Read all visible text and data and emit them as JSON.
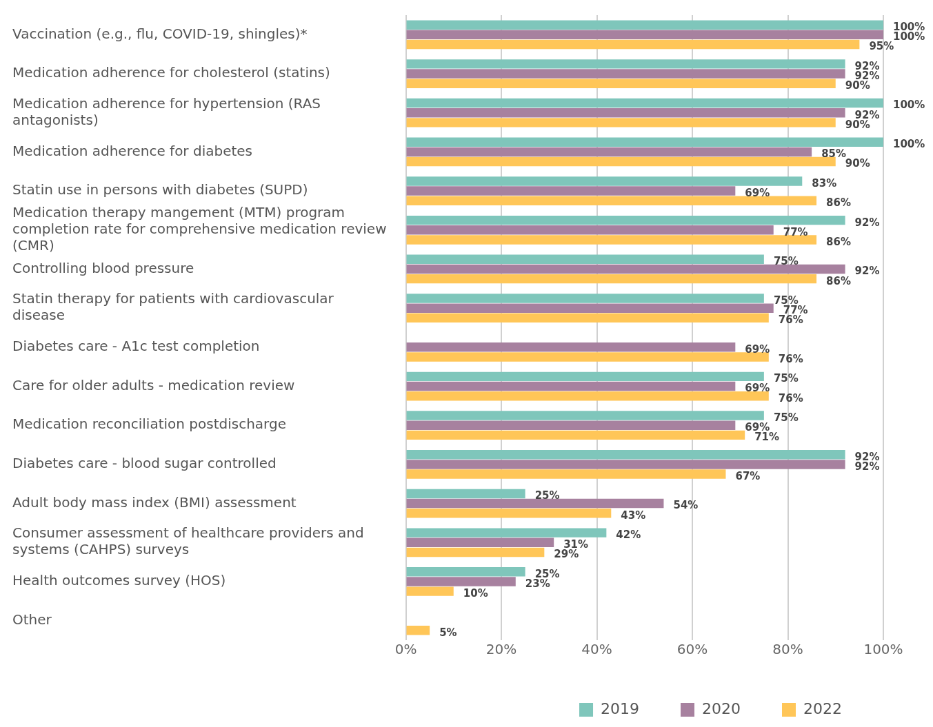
{
  "chart_data": {
    "type": "bar",
    "orientation": "horizontal",
    "categories": [
      "Vaccination (e.g., flu, COVID-19, shingles)*",
      "Medication adherence for cholesterol (statins)",
      "Medication adherence for hypertension (RAS antagonists)",
      "Medication adherence for diabetes",
      "Statin use in persons with diabetes (SUPD)",
      "Medication therapy mangement (MTM) program completion rate for comprehensive medication review (CMR)",
      "Controlling blood pressure",
      "Statin therapy for patients with cardiovascular disease",
      "Diabetes care - A1c test completion",
      "Care for older adults - medication review",
      "Medication reconciliation postdischarge",
      "Diabetes care - blood sugar controlled",
      "Adult body mass index (BMI) assessment",
      "Consumer assessment of healthcare providers and systems (CAHPS) surveys",
      "Health outcomes survey (HOS)",
      "Other"
    ],
    "series": [
      {
        "name": "2019",
        "color": "#7fc6bb",
        "values": [
          100,
          92,
          100,
          100,
          83,
          92,
          75,
          75,
          null,
          75,
          75,
          92,
          25,
          42,
          25,
          null
        ],
        "value_labels": [
          "100%",
          "92%",
          "100%",
          "100%",
          "83%",
          "92%",
          "75%",
          "75%",
          null,
          "75%",
          "75%",
          "92%",
          "25%",
          "42%",
          "25%",
          null
        ]
      },
      {
        "name": "2020",
        "color": "#a7819f",
        "values": [
          100,
          92,
          92,
          85,
          69,
          77,
          92,
          77,
          69,
          69,
          69,
          92,
          54,
          31,
          23,
          null
        ],
        "value_labels": [
          "100%",
          "92%",
          "92%",
          "85%",
          "69%",
          "77%",
          "92%",
          "77%",
          "69%",
          "69%",
          "69%",
          "92%",
          "54%",
          "31%",
          "23%",
          null
        ]
      },
      {
        "name": "2022",
        "color": "#ffc658",
        "values": [
          95,
          90,
          90,
          90,
          86,
          86,
          86,
          76,
          76,
          76,
          71,
          67,
          43,
          29,
          10,
          5
        ],
        "value_labels": [
          "95%",
          "90%",
          "90%",
          "90%",
          "86%",
          "86%",
          "86%",
          "76%",
          "76%",
          "76%",
          "71%",
          "67%",
          "43%",
          "29%",
          "10%",
          "5%"
        ]
      }
    ],
    "xlim": [
      0,
      100
    ],
    "xticks": [
      {
        "value": 0,
        "label": "0%"
      },
      {
        "value": 20,
        "label": "20%"
      },
      {
        "value": 40,
        "label": "40%"
      },
      {
        "value": 60,
        "label": "60%"
      },
      {
        "value": 80,
        "label": "80%"
      },
      {
        "value": 100,
        "label": "100%"
      }
    ],
    "grid": "x",
    "legend": "bottom"
  }
}
